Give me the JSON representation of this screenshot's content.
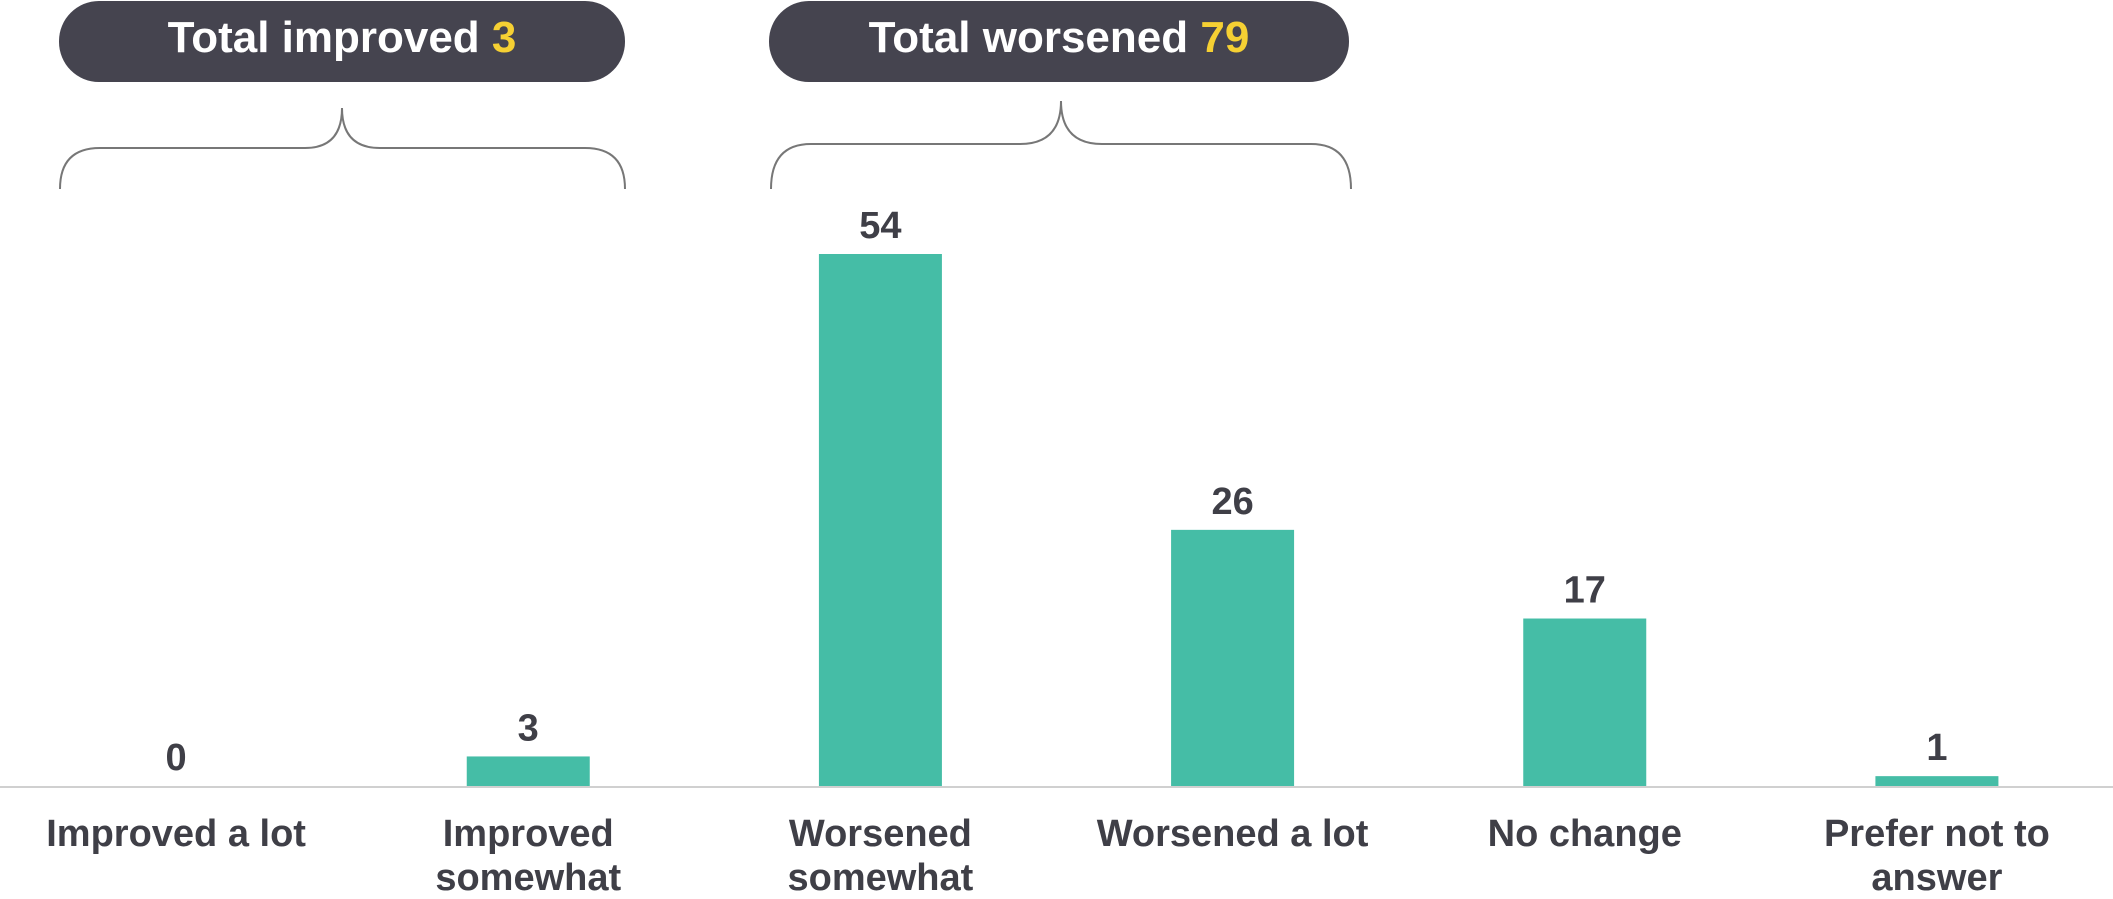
{
  "chart_data": {
    "type": "bar",
    "categories": [
      "Improved a lot",
      "Improved somewhat",
      "Worsened somewhat",
      "Worsened a lot",
      "No change",
      "Prefer not to answer"
    ],
    "values": [
      0,
      3,
      54,
      26,
      17,
      1
    ],
    "color": "#45bda6",
    "annotations": [
      {
        "label": "Total improved",
        "value": 3
      },
      {
        "label": "Total worsened",
        "value": 79
      }
    ]
  }
}
